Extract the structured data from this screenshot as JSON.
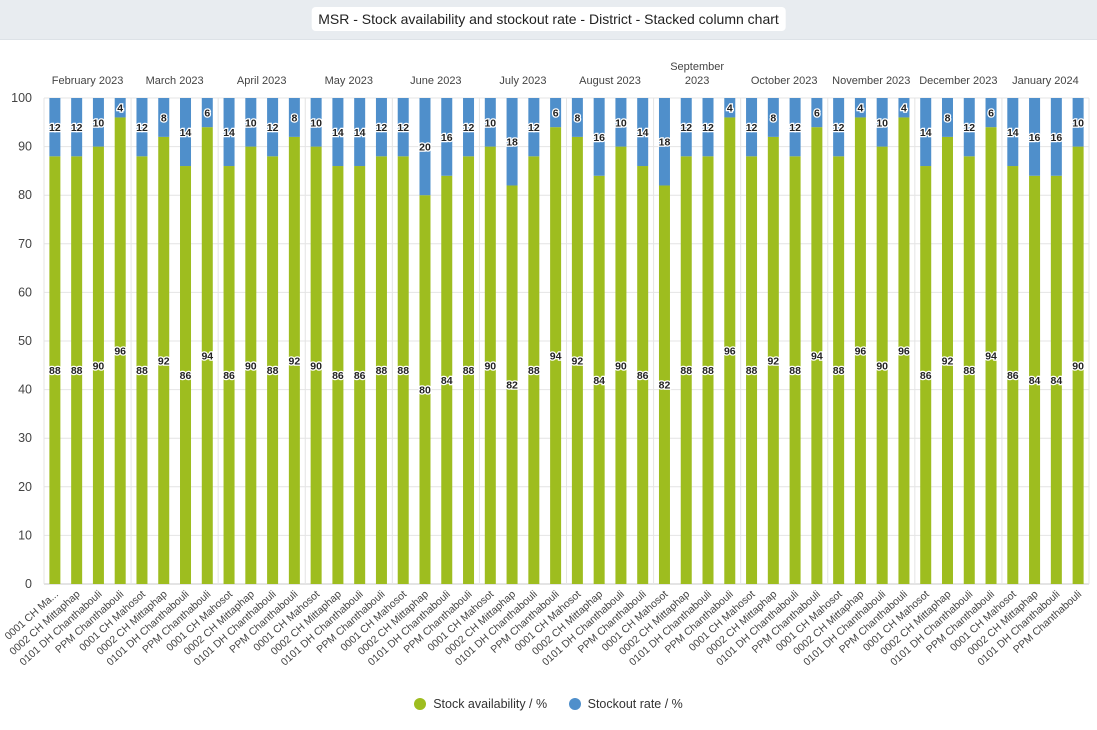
{
  "title": "MSR - Stock availability and stockout rate - District - Stacked column chart",
  "colors": {
    "availability": "#9ebd1f",
    "stockout": "#4f8fcb"
  },
  "chart_data": {
    "type": "bar",
    "stacked": true,
    "ylim": [
      0,
      100
    ],
    "yticks": [
      0,
      10,
      20,
      30,
      40,
      50,
      60,
      70,
      80,
      90,
      100
    ],
    "grid": true,
    "legend_position": "bottom",
    "xlabel": "",
    "ylabel": "",
    "groups": [
      {
        "month": "February 2023",
        "categories": [
          "0001 CH Ma...",
          "0002 CH Mittaphap",
          "0101 DH Chanthabouli",
          "PPM Chanthabouli"
        ]
      },
      {
        "month": "March 2023",
        "categories": [
          "0001 CH Mahosot",
          "0002 CH Mittaphap",
          "0101 DH Chanthabouli",
          "PPM Chanthabouli"
        ]
      },
      {
        "month": "April 2023",
        "categories": [
          "0001 CH Mahosot",
          "0002 CH Mittaphap",
          "0101 DH Chanthabouli",
          "PPM Chanthabouli"
        ]
      },
      {
        "month": "May 2023",
        "categories": [
          "0001 CH Mahosot",
          "0002 CH Mittaphap",
          "0101 DH Chanthabouli",
          "PPM Chanthabouli"
        ]
      },
      {
        "month": "June 2023",
        "categories": [
          "0001 CH Mahosot",
          "0002 CH Mittaphap",
          "0101 DH Chanthabouli",
          "PPM Chanthabouli"
        ]
      },
      {
        "month": "July 2023",
        "categories": [
          "0001 CH Mahosot",
          "0002 CH Mittaphap",
          "0101 DH Chanthabouli",
          "PPM Chanthabouli"
        ]
      },
      {
        "month": "August 2023",
        "categories": [
          "0001 CH Mahosot",
          "0002 CH Mittaphap",
          "0101 DH Chanthabouli",
          "PPM Chanthabouli"
        ]
      },
      {
        "month": "September 2023",
        "categories": [
          "0001 CH Mahosot",
          "0002 CH Mittaphap",
          "0101 DH Chanthabouli",
          "PPM Chanthabouli"
        ]
      },
      {
        "month": "October 2023",
        "categories": [
          "0001 CH Mahosot",
          "0002 CH Mittaphap",
          "0101 DH Chanthabouli",
          "PPM Chanthabouli"
        ]
      },
      {
        "month": "November 2023",
        "categories": [
          "0001 CH Mahosot",
          "0002 CH Mittaphap",
          "0101 DH Chanthabouli",
          "PPM Chanthabouli"
        ]
      },
      {
        "month": "December 2023",
        "categories": [
          "0001 CH Mahosot",
          "0002 CH Mittaphap",
          "0101 DH Chanthabouli",
          "PPM Chanthabouli"
        ]
      },
      {
        "month": "January 2024",
        "categories": [
          "0001 CH Mahosot",
          "0002 CH Mittaphap",
          "0101 DH Chanthabouli",
          "PPM Chanthabouli"
        ]
      }
    ],
    "series": [
      {
        "name": "Stock availability / %",
        "color": "#9ebd1f",
        "values": [
          88,
          88,
          90,
          96,
          88,
          92,
          86,
          94,
          86,
          90,
          88,
          92,
          90,
          86,
          86,
          88,
          88,
          80,
          84,
          88,
          90,
          82,
          88,
          94,
          92,
          84,
          90,
          86,
          82,
          88,
          88,
          96,
          88,
          92,
          88,
          94,
          88,
          96,
          90,
          96,
          86,
          92,
          88,
          94,
          86,
          84,
          84,
          90
        ]
      },
      {
        "name": "Stockout rate / %",
        "color": "#4f8fcb",
        "values": [
          12,
          12,
          10,
          4,
          12,
          8,
          14,
          6,
          14,
          10,
          12,
          8,
          10,
          14,
          14,
          12,
          12,
          20,
          16,
          12,
          10,
          18,
          12,
          6,
          8,
          16,
          10,
          14,
          18,
          12,
          12,
          4,
          12,
          8,
          12,
          6,
          12,
          4,
          10,
          4,
          14,
          8,
          12,
          6,
          14,
          16,
          16,
          10
        ]
      }
    ]
  }
}
